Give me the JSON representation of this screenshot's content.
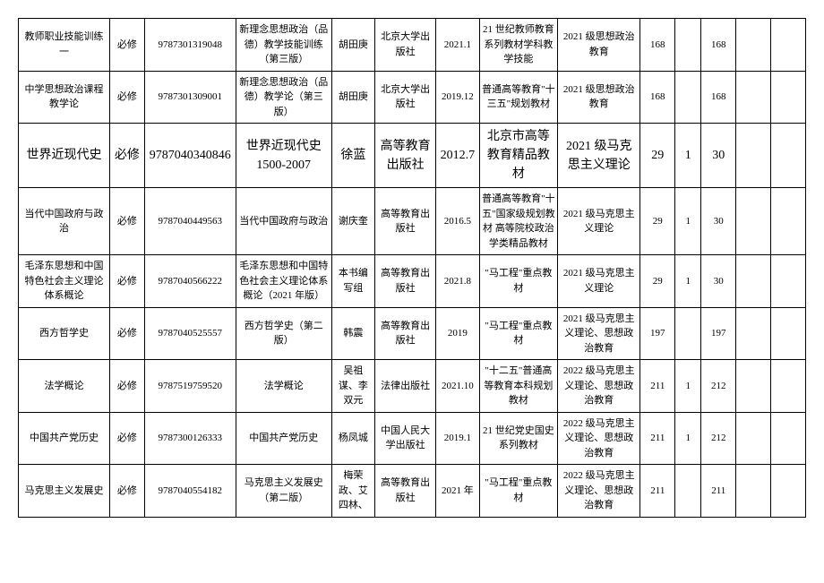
{
  "table": {
    "rows": [
      {
        "course": "教师职业技能训练一",
        "type": "必修",
        "isbn": "9787301319048",
        "book": "新理念思想政治（品德）教学技能训练（第三版）",
        "author": "胡田庚",
        "press": "北京大学出版社",
        "date": "2021.1",
        "note": "21 世纪教师教育系列教材学科教学技能",
        "class": "2021 级思想政治教育",
        "n1": "168",
        "n2": "",
        "n3": "168",
        "big": false
      },
      {
        "course": "中学思想政治课程教学论",
        "type": "必修",
        "isbn": "9787301309001",
        "book": "新理念思想政治（品德）教学论（第三版）",
        "author": "胡田庚",
        "press": "北京大学出版社",
        "date": "2019.12",
        "note": "普通高等教育\"十三五\"规划教材",
        "class": "2021 级思想政治教育",
        "n1": "168",
        "n2": "",
        "n3": "168",
        "big": false
      },
      {
        "course": "世界近现代史",
        "type": "必修",
        "isbn": "9787040340846",
        "book": "世界近现代史 1500-2007",
        "author": "徐蓝",
        "press": "高等教育出版社",
        "date": "2012.7",
        "note": "北京市高等教育精品教材",
        "class": "2021 级马克思主义理论",
        "n1": "29",
        "n2": "1",
        "n3": "30",
        "big": true
      },
      {
        "course": "当代中国政府与政治",
        "type": "必修",
        "isbn": "9787040449563",
        "book": "当代中国政府与政治",
        "author": "谢庆奎",
        "press": "高等教育出版社",
        "date": "2016.5",
        "note": "普通高等教育\"十五\"国家级规划教材\n高等院校政治学类精品教材",
        "class": "2021 级马克思主义理论",
        "n1": "29",
        "n2": "1",
        "n3": "30",
        "big": false
      },
      {
        "course": "毛泽东思想和中国特色社会主义理论体系概论",
        "type": "必修",
        "isbn": "9787040566222",
        "book": "毛泽东思想和中国特色社会主义理论体系概论（2021 年版）",
        "author": "本书编写组",
        "press": "高等教育出版社",
        "date": "2021.8",
        "note": "\"马工程\"重点教材",
        "class": "2021 级马克思主义理论",
        "n1": "29",
        "n2": "1",
        "n3": "30",
        "big": false
      },
      {
        "course": "西方哲学史",
        "type": "必修",
        "isbn": "9787040525557",
        "book": "西方哲学史（第二版）",
        "author": "韩震",
        "press": "高等教育出版社",
        "date": "2019",
        "note": "\"马工程\"重点教材",
        "class": "2021 级马克思主义理论、思想政治教育",
        "n1": "197",
        "n2": "",
        "n3": "197",
        "big": false
      },
      {
        "course": "法学概论",
        "type": "必修",
        "isbn": "9787519759520",
        "book": "法学概论",
        "author": "吴祖谋、李双元",
        "press": "法律出版社",
        "date": "2021.10",
        "note": "\"十二五\"普通高等教育本科规划教材",
        "class": "2022 级马克思主义理论、思想政治教育",
        "n1": "211",
        "n2": "1",
        "n3": "212",
        "big": false
      },
      {
        "course": "中国共产党历史",
        "type": "必修",
        "isbn": "9787300126333",
        "book": "中国共产党历史",
        "author": "杨凤城",
        "press": "中国人民大学出版社",
        "date": "2019.1",
        "note": "21 世纪党史国史系列教材",
        "class": "2022 级马克思主义理论、思想政治教育",
        "n1": "211",
        "n2": "1",
        "n3": "212",
        "big": false
      },
      {
        "course": "马克思主义发展史",
        "type": "必修",
        "isbn": "9787040554182",
        "book": "马克思主义发展史（第二版）",
        "author": "梅荣政、艾四林、",
        "press": "高等教育出版社",
        "date": "2021 年",
        "note": "\"马工程\"重点教材",
        "class": "2022 级马克思主义理论、思想政治教育",
        "n1": "211",
        "n2": "",
        "n3": "211",
        "big": false
      }
    ]
  }
}
